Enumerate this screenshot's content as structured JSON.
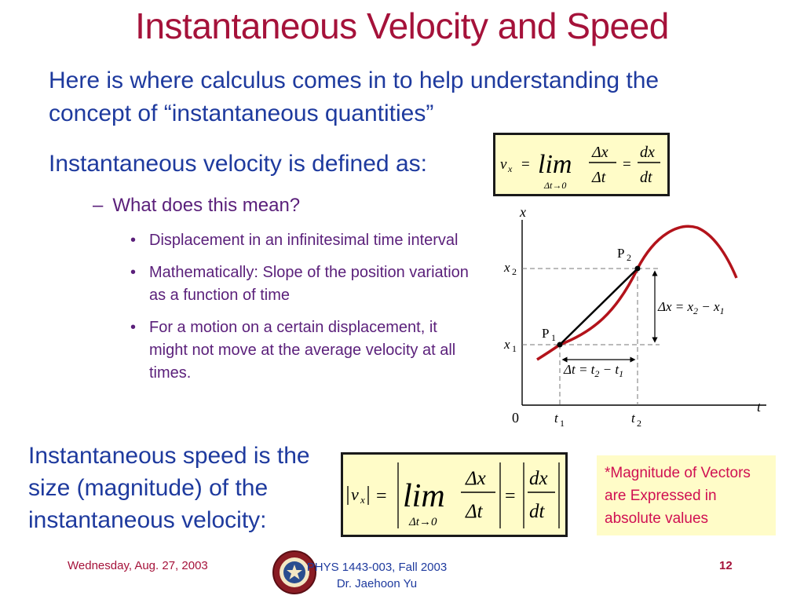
{
  "slide": {
    "title": "Instantaneous Velocity and Speed",
    "intro": "Here is where calculus comes in to help understanding the concept of “instantaneous quantities”",
    "defined": "Instantaneous velocity is defined as:",
    "sub_item": "What does this mean?",
    "sub_dash": "–",
    "bullets": [
      "Displacement in an infinitesimal time interval",
      "Mathematically: Slope of the position variation as a function of time",
      "For a motion on a certain displacement, it might not move at the average velocity at all times."
    ],
    "speed_text": "Instantaneous speed is the size (magnitude) of the instantaneous velocity:",
    "note": "*Magnitude of Vectors are Expressed in absolute values"
  },
  "equations": {
    "velocity": {
      "lhs": "v",
      "sub": "x",
      "equals": "=",
      "lim": "lim",
      "limit_under": "Δt→0",
      "num1": "Δx",
      "den1": "Δt",
      "num2": "dx",
      "den2": "dt"
    },
    "speed": {
      "lhs": "v",
      "sub": "x",
      "equals": "=",
      "lim": "lim",
      "limit_under": "Δt→0",
      "num1": "Δx",
      "den1": "Δt",
      "num2": "dx",
      "den2": "dt"
    }
  },
  "graph": {
    "x_axis_label": "t",
    "y_axis_label": "x",
    "origin": "0",
    "t1": "t",
    "t1_sub": "1",
    "t2": "t",
    "t2_sub": "2",
    "x1": "x",
    "x1_sub": "1",
    "x2": "x",
    "x2_sub": "2",
    "p1": "P",
    "p1_sub": "1",
    "p2": "P",
    "p2_sub": "2",
    "dx_label": "Δx = x",
    "dx_sub2": "2",
    "dx_minus": " − x",
    "dx_sub1": "1",
    "dt_label": "Δt = t",
    "dt_sub2": "2",
    "dt_minus": " − t",
    "dt_sub1": "1",
    "colors": {
      "curve": "#b3131b",
      "chord": "#000000",
      "guides": "#777777"
    }
  },
  "footer": {
    "date": "Wednesday, Aug. 27, 2003",
    "course": "PHYS 1443-003, Fall 2003",
    "instructor": "Dr. Jaehoon Yu",
    "page": "12",
    "seal_icon": "university-seal-icon"
  }
}
